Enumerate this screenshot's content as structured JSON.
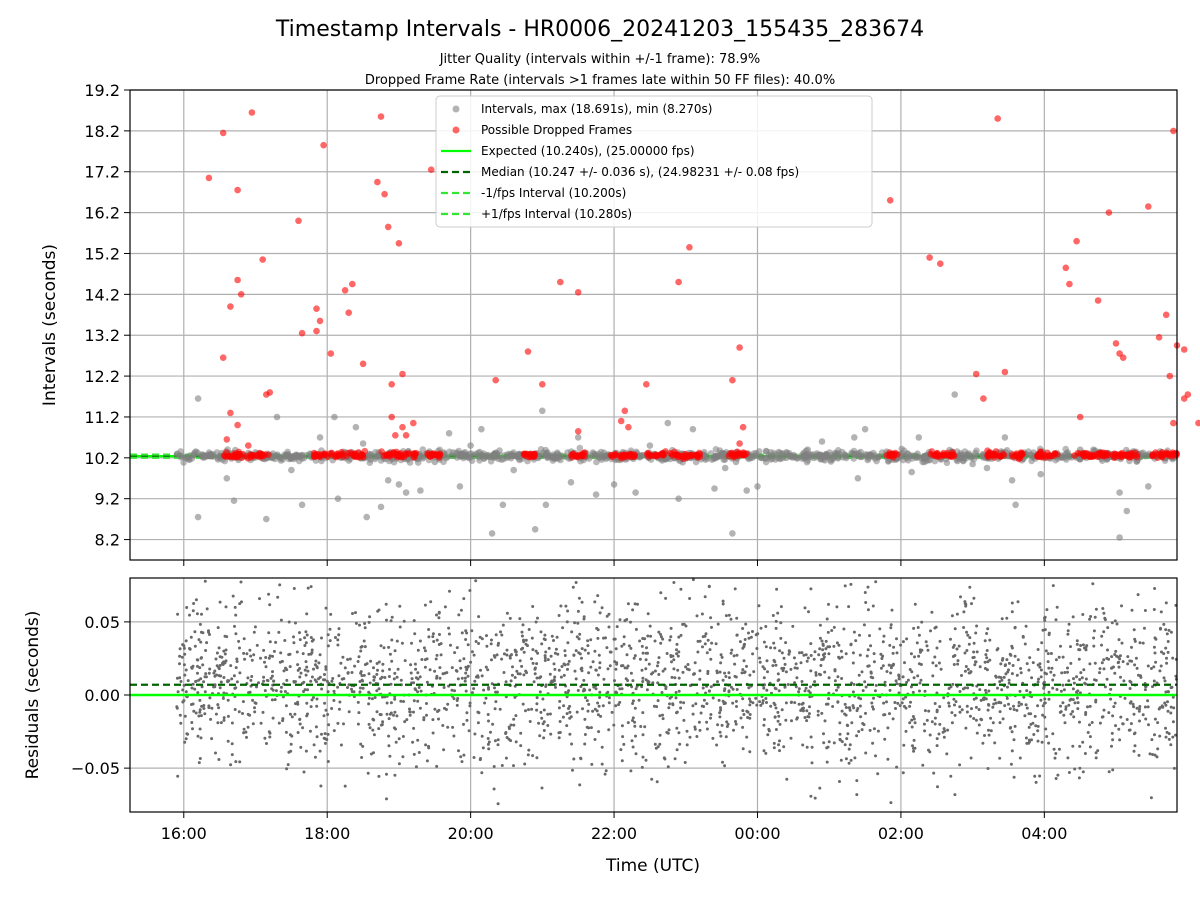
{
  "chart_data": [
    {
      "type": "scatter",
      "title": "Timestamp Intervals - HR0006_20241203_155435_283674",
      "subtitle_1": "Jitter Quality (intervals within +/-1 frame): 78.9%",
      "subtitle_2": "Dropped Frame Rate (intervals >1 frames late within 50 FF files): 40.0%",
      "ylabel": "Intervals (seconds)",
      "ylim": [
        7.7,
        19.2
      ],
      "yticks": [
        "8.2",
        "9.2",
        "10.2",
        "11.2",
        "12.2",
        "13.2",
        "14.2",
        "15.2",
        "16.2",
        "17.2",
        "18.2",
        "19.2"
      ],
      "xlim_hours": [
        15.25,
        29.85
      ],
      "grid": true,
      "legend_position": "upper-center",
      "legend": [
        "Intervals, max (18.691s), min (8.270s)",
        "Possible Dropped Frames",
        "Expected (10.240s), (25.00000 fps)",
        "Median (10.247 +/- 0.036 s), (24.98231 +/- 0.08 fps)",
        "-1/fps Interval (10.200s)",
        "+1/fps Interval (10.280s)"
      ],
      "lines": {
        "expected": 10.24,
        "median": 10.247,
        "minus_1fps": 10.2,
        "plus_1fps": 10.28
      },
      "series": [
        {
          "name": "Intervals, max (18.691s), min (8.270s)",
          "color": "#808080",
          "points": [
            [
              16.2,
              11.65
            ],
            [
              16.2,
              8.75
            ],
            [
              16.6,
              9.7
            ],
            [
              16.7,
              9.15
            ],
            [
              17.15,
              8.7
            ],
            [
              17.5,
              9.9
            ],
            [
              17.65,
              9.05
            ],
            [
              17.9,
              10.7
            ],
            [
              18.15,
              9.2
            ],
            [
              18.4,
              10.95
            ],
            [
              18.5,
              10.55
            ],
            [
              18.55,
              8.75
            ],
            [
              18.75,
              9.0
            ],
            [
              18.85,
              9.65
            ],
            [
              19.0,
              9.55
            ],
            [
              19.1,
              9.35
            ],
            [
              19.3,
              9.4
            ],
            [
              19.7,
              10.8
            ],
            [
              19.85,
              9.5
            ],
            [
              20.0,
              10.5
            ],
            [
              20.15,
              10.9
            ],
            [
              20.3,
              8.35
            ],
            [
              20.45,
              9.05
            ],
            [
              20.6,
              9.9
            ],
            [
              20.9,
              8.45
            ],
            [
              21.0,
              11.35
            ],
            [
              21.05,
              9.05
            ],
            [
              21.4,
              9.6
            ],
            [
              21.75,
              9.3
            ],
            [
              22.0,
              9.55
            ],
            [
              22.3,
              9.35
            ],
            [
              22.5,
              10.5
            ],
            [
              22.75,
              11.05
            ],
            [
              22.9,
              9.2
            ],
            [
              23.1,
              10.9
            ],
            [
              23.4,
              9.45
            ],
            [
              23.55,
              9.95
            ],
            [
              23.65,
              8.35
            ],
            [
              23.7,
              10.1
            ],
            [
              23.85,
              9.4
            ],
            [
              24.0,
              9.5
            ],
            [
              24.4,
              10.2
            ],
            [
              24.7,
              10.4
            ],
            [
              24.9,
              10.6
            ],
            [
              25.35,
              10.7
            ],
            [
              25.8,
              10.35
            ],
            [
              25.4,
              9.7
            ],
            [
              25.5,
              10.9
            ],
            [
              26.15,
              9.85
            ],
            [
              26.25,
              10.7
            ],
            [
              26.75,
              11.75
            ],
            [
              27.0,
              10.05
            ],
            [
              27.2,
              9.95
            ],
            [
              27.45,
              10.7
            ],
            [
              27.6,
              9.05
            ],
            [
              27.55,
              9.65
            ],
            [
              27.95,
              9.8
            ],
            [
              28.5,
              10.4
            ],
            [
              29.05,
              9.35
            ],
            [
              29.15,
              8.9
            ],
            [
              29.05,
              8.25
            ],
            [
              29.45,
              9.5
            ],
            [
              17.3,
              11.2
            ],
            [
              18.1,
              11.2
            ],
            [
              19.5,
              10.1
            ],
            [
              21.5,
              10.7
            ]
          ]
        },
        {
          "name": "Possible Dropped Frames",
          "color": "#ff0000",
          "points": [
            [
              16.55,
              18.15
            ],
            [
              16.95,
              18.65
            ],
            [
              16.35,
              17.05
            ],
            [
              16.75,
              16.75
            ],
            [
              17.1,
              15.05
            ],
            [
              16.75,
              14.55
            ],
            [
              16.65,
              13.9
            ],
            [
              16.8,
              14.2
            ],
            [
              16.55,
              12.65
            ],
            [
              16.65,
              11.3
            ],
            [
              16.6,
              10.65
            ],
            [
              16.75,
              11.0
            ],
            [
              17.15,
              11.75
            ],
            [
              17.2,
              11.8
            ],
            [
              16.9,
              10.5
            ],
            [
              17.6,
              16.0
            ],
            [
              17.65,
              13.25
            ],
            [
              17.85,
              13.85
            ],
            [
              17.9,
              13.55
            ],
            [
              17.95,
              17.85
            ],
            [
              18.05,
              12.75
            ],
            [
              17.85,
              13.3
            ],
            [
              18.25,
              14.3
            ],
            [
              18.35,
              14.45
            ],
            [
              18.3,
              13.75
            ],
            [
              18.5,
              12.5
            ],
            [
              18.7,
              16.95
            ],
            [
              18.75,
              18.55
            ],
            [
              18.8,
              16.65
            ],
            [
              18.85,
              15.85
            ],
            [
              19.0,
              15.45
            ],
            [
              18.9,
              12.0
            ],
            [
              18.9,
              11.2
            ],
            [
              19.05,
              12.25
            ],
            [
              18.95,
              10.75
            ],
            [
              19.05,
              10.95
            ],
            [
              19.1,
              10.75
            ],
            [
              19.2,
              11.05
            ],
            [
              19.45,
              17.25
            ],
            [
              20.35,
              12.1
            ],
            [
              20.8,
              12.8
            ],
            [
              21.0,
              12.0
            ],
            [
              21.25,
              14.5
            ],
            [
              21.5,
              14.25
            ],
            [
              21.5,
              10.85
            ],
            [
              22.1,
              11.1
            ],
            [
              22.15,
              11.35
            ],
            [
              22.2,
              10.95
            ],
            [
              22.45,
              12.0
            ],
            [
              22.9,
              14.5
            ],
            [
              23.05,
              15.35
            ],
            [
              23.65,
              12.1
            ],
            [
              23.75,
              12.9
            ],
            [
              23.8,
              10.95
            ],
            [
              23.75,
              10.55
            ],
            [
              25.85,
              16.5
            ],
            [
              26.4,
              15.1
            ],
            [
              26.55,
              14.95
            ],
            [
              27.05,
              12.25
            ],
            [
              27.15,
              11.65
            ],
            [
              27.35,
              18.5
            ],
            [
              27.45,
              12.3
            ],
            [
              28.3,
              14.85
            ],
            [
              28.35,
              14.45
            ],
            [
              28.45,
              15.5
            ],
            [
              28.5,
              11.2
            ],
            [
              28.75,
              14.05
            ],
            [
              28.9,
              16.2
            ],
            [
              29.0,
              13.0
            ],
            [
              29.05,
              12.75
            ],
            [
              29.1,
              12.65
            ],
            [
              29.45,
              16.35
            ],
            [
              29.6,
              13.15
            ],
            [
              29.7,
              13.7
            ],
            [
              29.75,
              12.2
            ],
            [
              29.8,
              18.2
            ],
            [
              29.8,
              11.05
            ],
            [
              29.85,
              12.95
            ],
            [
              29.95,
              11.65
            ],
            [
              30.0,
              11.75
            ],
            [
              29.95,
              12.85
            ],
            [
              30.15,
              11.05
            ]
          ]
        }
      ]
    },
    {
      "type": "scatter",
      "ylabel": "Residuals (seconds)",
      "xlabel": "Time (UTC)",
      "ylim": [
        -0.08,
        0.08
      ],
      "yticks": [
        "0.05",
        "0.00",
        "−0.05"
      ],
      "xticks": [
        "16:00",
        "18:00",
        "20:00",
        "22:00",
        "00:00",
        "02:00",
        "04:00"
      ],
      "xtick_hours": [
        16,
        18,
        20,
        22,
        24,
        26,
        28
      ],
      "grid": true,
      "lines": {
        "expected": 0.0,
        "median": 0.007
      },
      "series": [
        {
          "name": "",
          "color": "#696969",
          "x_range": [
            15.9,
            29.85
          ],
          "count": 2600
        }
      ]
    }
  ]
}
